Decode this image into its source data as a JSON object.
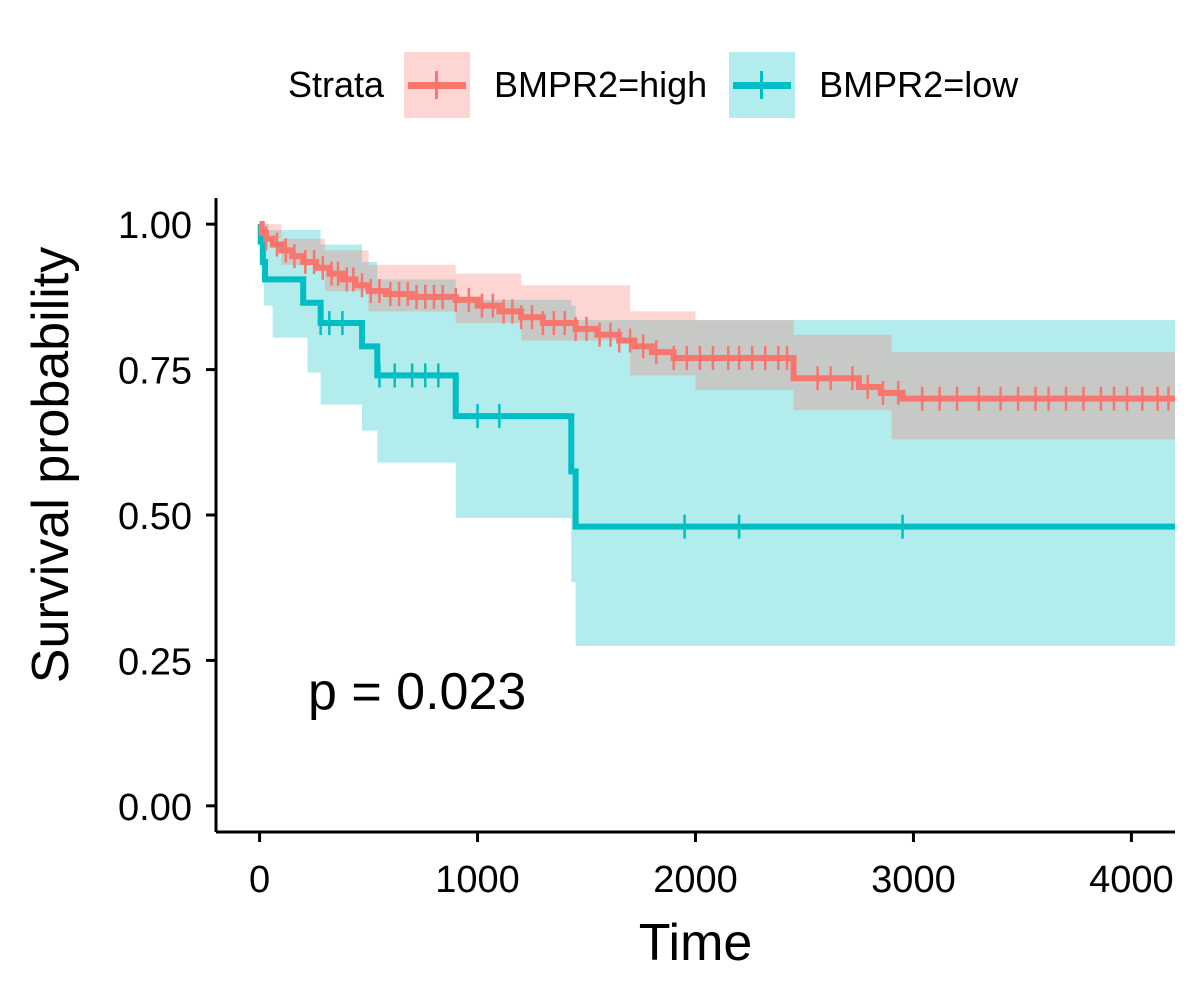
{
  "legend": {
    "title": "Strata",
    "items": [
      {
        "label": "BMPR2=high",
        "color": "#F8766D",
        "band_color": "#F8766D"
      },
      {
        "label": "BMPR2=low",
        "color": "#00BFC4",
        "band_color": "#00BFC4"
      }
    ]
  },
  "annotation": {
    "pvalue": "p = 0.023"
  },
  "chart_data": {
    "type": "line",
    "subtype": "kaplan-meier survival curve with confidence bands and censor ticks",
    "xlabel": "Time",
    "ylabel": "Survival probability",
    "xlim": [
      -200,
      4200
    ],
    "ylim": [
      -0.045,
      1.045
    ],
    "xticks": [
      0,
      1000,
      2000,
      3000,
      4000
    ],
    "xtick_labels": [
      "0",
      "1000",
      "2000",
      "3000",
      "4000"
    ],
    "yticks": [
      0,
      0.25,
      0.5,
      0.75,
      1.0
    ],
    "ytick_labels": [
      "0.00",
      "0.25",
      "0.50",
      "0.75",
      "1.00"
    ],
    "grid": false,
    "legend_position": "top",
    "series": [
      {
        "name": "BMPR2=high",
        "color": "#F8766D",
        "steps": [
          [
            0,
            1.0
          ],
          [
            10,
            0.985
          ],
          [
            30,
            0.975
          ],
          [
            60,
            0.965
          ],
          [
            100,
            0.955
          ],
          [
            150,
            0.945
          ],
          [
            200,
            0.935
          ],
          [
            260,
            0.925
          ],
          [
            320,
            0.915
          ],
          [
            380,
            0.905
          ],
          [
            440,
            0.895
          ],
          [
            500,
            0.885
          ],
          [
            580,
            0.88
          ],
          [
            700,
            0.875
          ],
          [
            900,
            0.87
          ],
          [
            1000,
            0.86
          ],
          [
            1100,
            0.85
          ],
          [
            1200,
            0.84
          ],
          [
            1300,
            0.83
          ],
          [
            1450,
            0.82
          ],
          [
            1550,
            0.81
          ],
          [
            1650,
            0.8
          ],
          [
            1720,
            0.79
          ],
          [
            1800,
            0.78
          ],
          [
            1900,
            0.77
          ],
          [
            2450,
            0.735
          ],
          [
            2750,
            0.72
          ],
          [
            2850,
            0.71
          ],
          [
            2950,
            0.7
          ],
          [
            4200,
            0.7
          ]
        ],
        "lower": [
          [
            0,
            0.975
          ],
          [
            100,
            0.93
          ],
          [
            300,
            0.885
          ],
          [
            500,
            0.85
          ],
          [
            900,
            0.83
          ],
          [
            1200,
            0.8
          ],
          [
            1700,
            0.74
          ],
          [
            2000,
            0.715
          ],
          [
            2450,
            0.68
          ],
          [
            2900,
            0.63
          ],
          [
            4200,
            0.63
          ]
        ],
        "upper": [
          [
            0,
            1.0
          ],
          [
            100,
            0.975
          ],
          [
            300,
            0.955
          ],
          [
            500,
            0.93
          ],
          [
            900,
            0.915
          ],
          [
            1200,
            0.895
          ],
          [
            1700,
            0.85
          ],
          [
            2000,
            0.835
          ],
          [
            2450,
            0.81
          ],
          [
            2900,
            0.78
          ],
          [
            4200,
            0.78
          ]
        ],
        "censor_times": [
          30,
          80,
          120,
          160,
          210,
          250,
          290,
          330,
          360,
          400,
          430,
          470,
          510,
          550,
          600,
          640,
          680,
          720,
          760,
          800,
          840,
          900,
          960,
          1020,
          1070,
          1120,
          1160,
          1200,
          1250,
          1300,
          1350,
          1400,
          1450,
          1500,
          1560,
          1610,
          1650,
          1700,
          1760,
          1820,
          1900,
          1960,
          2020,
          2080,
          2150,
          2200,
          2260,
          2320,
          2380,
          2420,
          2560,
          2620,
          2720,
          2790,
          2860,
          2930,
          3040,
          3120,
          3200,
          3300,
          3400,
          3480,
          3560,
          3620,
          3700,
          3780,
          3860,
          3920,
          3980,
          4050,
          4120,
          4170
        ]
      },
      {
        "name": "BMPR2=low",
        "color": "#00BFC4",
        "steps": [
          [
            0,
            1.0
          ],
          [
            5,
            0.97
          ],
          [
            15,
            0.935
          ],
          [
            25,
            0.905
          ],
          [
            200,
            0.865
          ],
          [
            280,
            0.83
          ],
          [
            470,
            0.79
          ],
          [
            540,
            0.74
          ],
          [
            900,
            0.67
          ],
          [
            1430,
            0.575
          ],
          [
            1450,
            0.48
          ],
          [
            4200,
            0.48
          ]
        ],
        "lower": [
          [
            0,
            0.935
          ],
          [
            20,
            0.86
          ],
          [
            60,
            0.805
          ],
          [
            220,
            0.745
          ],
          [
            280,
            0.69
          ],
          [
            470,
            0.645
          ],
          [
            540,
            0.59
          ],
          [
            900,
            0.495
          ],
          [
            1430,
            0.385
          ],
          [
            1450,
            0.275
          ],
          [
            4200,
            0.275
          ]
        ],
        "upper": [
          [
            0,
            1.0
          ],
          [
            40,
            0.99
          ],
          [
            280,
            0.965
          ],
          [
            470,
            0.935
          ],
          [
            540,
            0.905
          ],
          [
            900,
            0.87
          ],
          [
            1430,
            0.86
          ],
          [
            1450,
            0.835
          ],
          [
            4200,
            0.835
          ]
        ],
        "censor_times": [
          280,
          320,
          380,
          550,
          620,
          700,
          760,
          820,
          1000,
          1100,
          1950,
          2200,
          2950
        ]
      }
    ]
  }
}
